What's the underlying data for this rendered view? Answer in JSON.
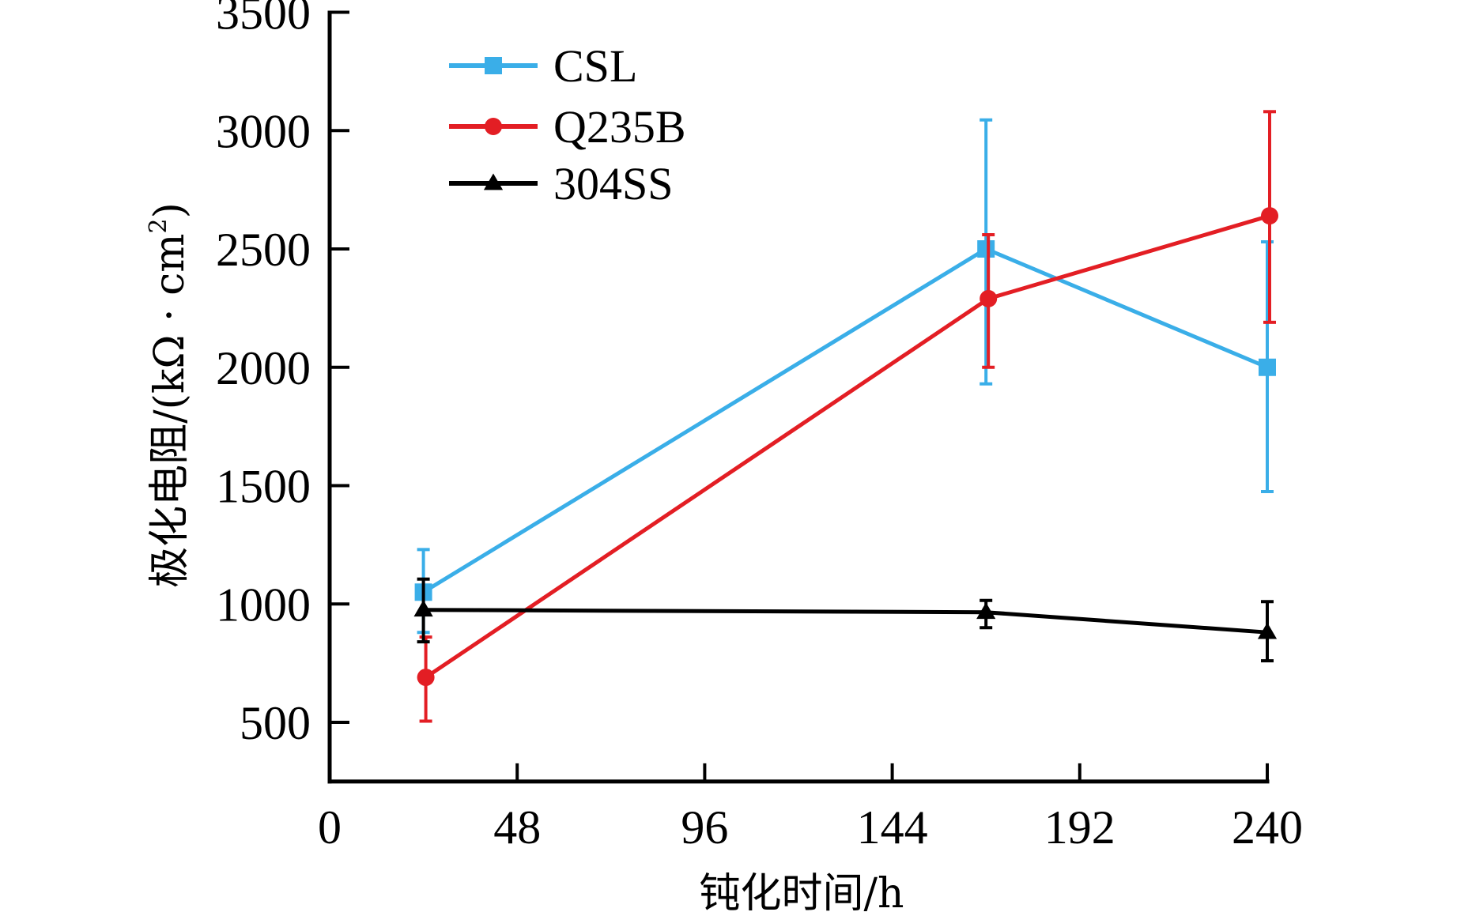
{
  "chart_data": {
    "type": "line",
    "title": "",
    "xlabel": "钝化时间/h",
    "ylabel": "极化电阻/(kΩ · cm²)",
    "ylabel_parts": {
      "main": "极化电阻/(kΩ · cm",
      "sup": "2",
      "end": ")"
    },
    "xlim": [
      0,
      240
    ],
    "ylim": [
      250,
      3500
    ],
    "x_ticks": [
      0,
      48,
      96,
      144,
      192,
      240
    ],
    "y_ticks": [
      500,
      1000,
      1500,
      2000,
      2500,
      3000,
      3500
    ],
    "x_tick_labels": [
      "0",
      "48",
      "96",
      "144",
      "192",
      "240"
    ],
    "y_tick_labels": [
      "500",
      "1000",
      "1500",
      "2000",
      "2500",
      "3000",
      "3500"
    ],
    "grid": false,
    "legend_position": "top-left",
    "x": [
      24,
      168,
      240
    ],
    "series": [
      {
        "name": "CSL",
        "color": "#3aaee8",
        "marker": "square",
        "values": [
          1050,
          2500,
          2000
        ],
        "error_low": [
          880,
          1930,
          1475
        ],
        "error_high": [
          1230,
          3045,
          2530
        ]
      },
      {
        "name": "Q235B",
        "color": "#e31e24",
        "marker": "circle",
        "values": [
          690,
          2290,
          2640
        ],
        "error_low": [
          505,
          2000,
          2190
        ],
        "error_high": [
          860,
          2560,
          3080
        ]
      },
      {
        "name": "304SS",
        "color": "#000000",
        "marker": "triangle",
        "values": [
          975,
          965,
          880
        ],
        "error_low": [
          840,
          900,
          760
        ],
        "error_high": [
          1105,
          1015,
          1010
        ]
      }
    ]
  }
}
